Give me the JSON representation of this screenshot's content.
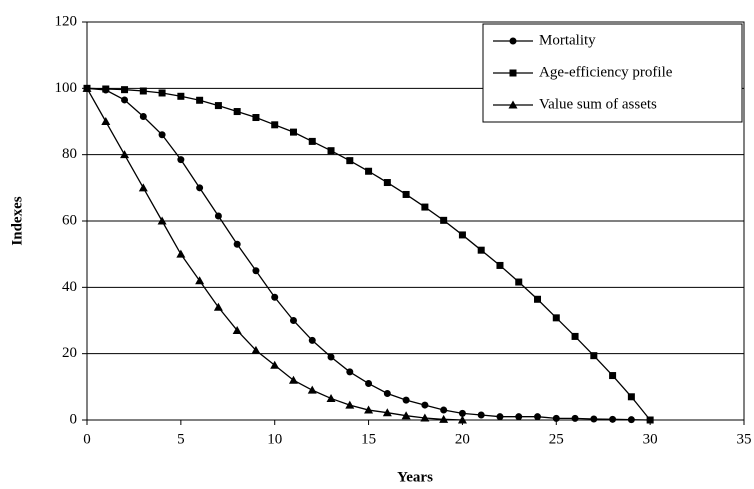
{
  "chart_data": {
    "type": "line",
    "x_label": "Years",
    "y_label": "Indexes",
    "xlim": [
      0,
      35
    ],
    "xticks": [
      0,
      5,
      10,
      15,
      20,
      25,
      30,
      35
    ],
    "ylim": [
      0,
      120
    ],
    "yticks": [
      0,
      20,
      40,
      60,
      80,
      100,
      120
    ],
    "grid": true,
    "legend": "top-right",
    "series": [
      {
        "name": "Mortality",
        "color": "#000000",
        "marker": "circle",
        "x": [
          0,
          1,
          2,
          3,
          4,
          5,
          6,
          7,
          8,
          9,
          10,
          11,
          12,
          13,
          14,
          15,
          16,
          17,
          18,
          19,
          20,
          21,
          22,
          23,
          24,
          25,
          26,
          27,
          28,
          29,
          30
        ],
        "values": [
          100,
          99.5,
          96.5,
          91.5,
          86,
          78.5,
          70,
          61.5,
          53,
          45,
          37,
          30,
          24,
          19,
          14.5,
          11,
          8,
          6,
          4.5,
          3,
          2,
          1.5,
          1,
          1,
          1,
          0.5,
          0.5,
          0.3,
          0.2,
          0.1,
          0
        ]
      },
      {
        "name": "Age-efficiency profile",
        "color": "#000000",
        "marker": "square",
        "x": [
          0,
          1,
          2,
          3,
          4,
          5,
          6,
          7,
          8,
          9,
          10,
          11,
          12,
          13,
          14,
          15,
          16,
          17,
          18,
          19,
          20,
          21,
          22,
          23,
          24,
          25,
          26,
          27,
          28,
          29,
          30
        ],
        "values": [
          100,
          99.8,
          99.6,
          99.2,
          98.6,
          97.6,
          96.4,
          94.8,
          93,
          91.2,
          89,
          86.8,
          84,
          81.2,
          78.2,
          75,
          71.6,
          68,
          64.2,
          60.2,
          55.8,
          51.2,
          46.6,
          41.6,
          36.4,
          30.8,
          25.2,
          19.4,
          13.4,
          7,
          0
        ]
      },
      {
        "name": "Value sum of assets",
        "color": "#000000",
        "marker": "triangle",
        "x": [
          0,
          1,
          2,
          3,
          4,
          5,
          6,
          7,
          8,
          9,
          10,
          11,
          12,
          13,
          14,
          15,
          16,
          17,
          18,
          19,
          20
        ],
        "values": [
          100,
          90,
          80,
          70,
          60,
          50,
          42,
          34,
          27,
          21,
          16.5,
          12,
          9,
          6.5,
          4.5,
          3,
          2.2,
          1.3,
          0.6,
          0.2,
          0
        ]
      }
    ]
  }
}
